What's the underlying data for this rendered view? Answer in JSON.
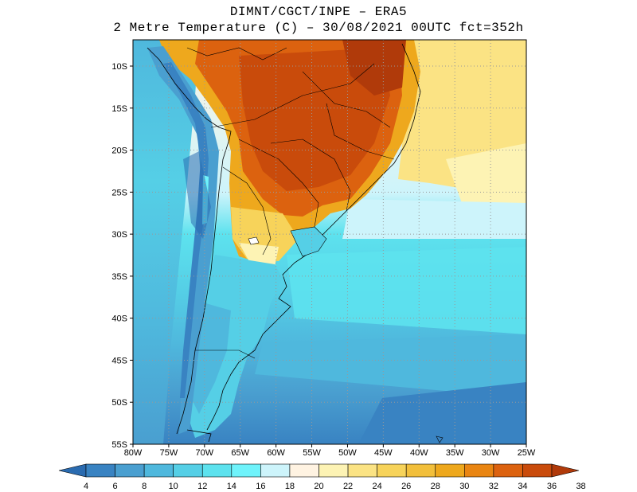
{
  "title_line1": "DIMNT/CGCT/INPE –  ERA5",
  "title_line2": "2 Metre Temperature (C) –  30/08/2021 00UTC fct=352h",
  "map": {
    "lat_labels": [
      "10S",
      "15S",
      "20S",
      "25S",
      "30S",
      "35S",
      "40S",
      "45S",
      "50S",
      "55S"
    ],
    "lon_labels": [
      "80W",
      "75W",
      "70W",
      "65W",
      "60W",
      "55W",
      "50W",
      "45W",
      "40W",
      "35W",
      "30W",
      "25W"
    ],
    "grid": "dotted"
  },
  "colorbar": {
    "labels": [
      "4",
      "6",
      "8",
      "10",
      "12",
      "14",
      "16",
      "18",
      "20",
      "22",
      "24",
      "26",
      "28",
      "30",
      "32",
      "34",
      "36",
      "38"
    ],
    "colors": [
      "#2a6bb0",
      "#3983c2",
      "#4a9fd0",
      "#4fb8dd",
      "#55cfe6",
      "#5de2ee",
      "#6ff3fb",
      "#cdf4fb",
      "#fff3e2",
      "#fdf3b4",
      "#fbe384",
      "#f7d35a",
      "#f2bf3b",
      "#eea81d",
      "#e98512",
      "#dc620f",
      "#c94b0b",
      "#b03a0a"
    ]
  }
}
